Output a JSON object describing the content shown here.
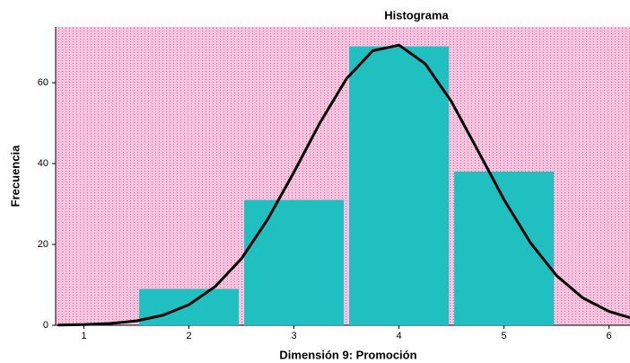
{
  "chart_data": {
    "type": "histogram",
    "title": "Histograma",
    "xlabel": "Dimensión 9: Promoción",
    "ylabel": "Frecuencia",
    "bins": [
      1.5,
      2.5,
      3.5,
      4.5,
      5.5
    ],
    "values": [
      9,
      31,
      69,
      38
    ],
    "color": "#20c0c0",
    "background": "#f9c0e0",
    "xlim": [
      0.73,
      6.2
    ],
    "xticks": [
      1,
      2,
      3,
      4,
      5,
      6
    ],
    "ylim": [
      0,
      73.8
    ],
    "yticks": [
      0,
      20,
      40,
      60
    ],
    "curve": {
      "color": "#000000",
      "x": [
        0.75,
        1,
        1.25,
        1.5,
        1.75,
        2,
        2.25,
        2.5,
        2.75,
        3,
        3.25,
        3.5,
        3.75,
        4,
        4.25,
        4.5,
        4.75,
        5,
        5.25,
        5.5,
        5.75,
        6,
        6.2
      ],
      "y": [
        0.06,
        0.17,
        0.45,
        1.1,
        2.47,
        5.09,
        9.58,
        16.5,
        26.2,
        37.9,
        50.2,
        61.0,
        67.9,
        69.3,
        64.7,
        55.3,
        43.3,
        31.1,
        20.5,
        12.3,
        6.79,
        3.43,
        1.86
      ]
    }
  }
}
